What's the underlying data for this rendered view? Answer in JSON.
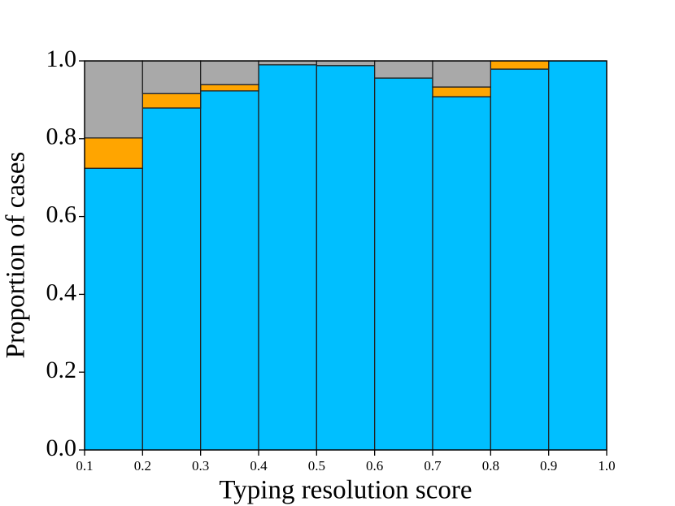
{
  "chart_data": {
    "type": "histogram",
    "xlabel": "Typing resolution score",
    "ylabel": "Proportion of cases",
    "bins": [
      0.1,
      0.2,
      0.3,
      0.4,
      0.5,
      0.6,
      0.7,
      0.8,
      0.9,
      1.0
    ],
    "series": [
      {
        "color": "#00bfff",
        "values": [
          0.724,
          0.879,
          0.923,
          0.99,
          0.988,
          0.956,
          0.908,
          0.979,
          1.0
        ]
      },
      {
        "color": "#ffa500",
        "values": [
          0.078,
          0.037,
          0.016,
          0,
          0,
          0,
          0.025,
          0.021,
          0
        ]
      },
      {
        "color": "#a9a9a9",
        "values": [
          0.198,
          0.084,
          0.061,
          0.01,
          0.012,
          0.044,
          0.067,
          0,
          0
        ]
      }
    ],
    "xlim": [
      0.1,
      1.0
    ],
    "ylim": [
      0,
      1
    ],
    "xticks": [
      0.1,
      0.2,
      0.3,
      0.4,
      0.5,
      0.6,
      0.7,
      0.8,
      0.9,
      {
        "value": 1,
        "label": "1.0"
      }
    ],
    "yticks": [
      {
        "value": 0,
        "label": "0.0"
      },
      0.2,
      0.4,
      0.6,
      0.8,
      {
        "value": 1,
        "label": "1.0"
      }
    ]
  }
}
